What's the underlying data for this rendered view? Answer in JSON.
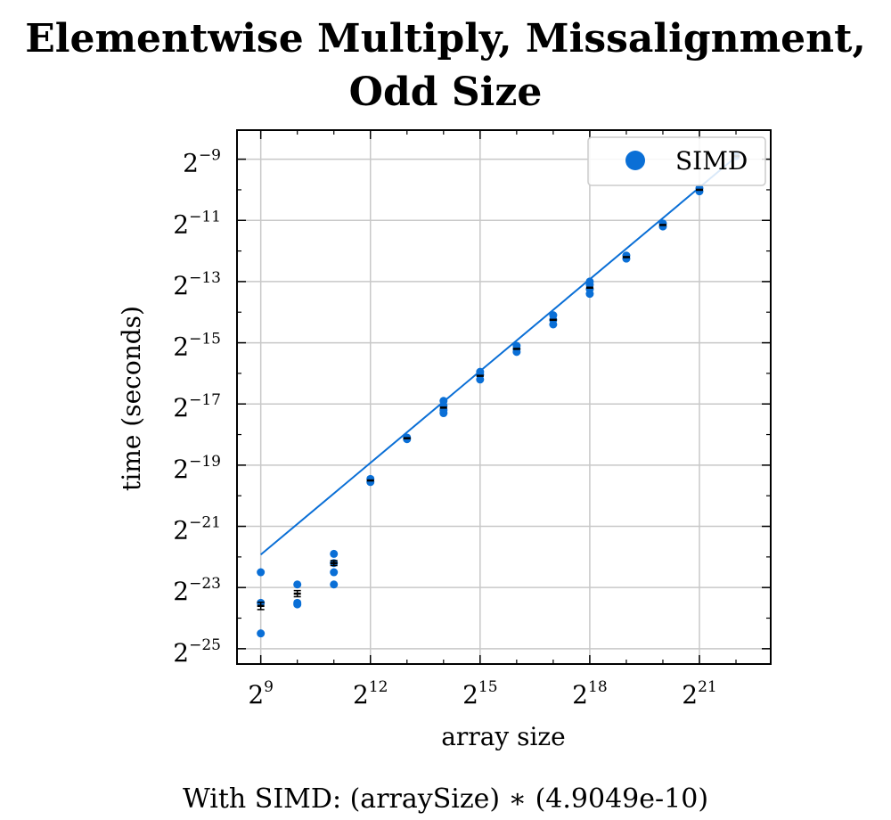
{
  "chart_data": {
    "type": "scatter",
    "title_lines": [
      "Elementwise Multiply, Missalignment,",
      "Odd Size"
    ],
    "xlabel": "array size",
    "ylabel": "time (seconds)",
    "x_scale": "log2",
    "y_scale": "log2",
    "x_range_exp": [
      8.35,
      22.95
    ],
    "y_range_exp": [
      -25.5,
      -8.05
    ],
    "x_ticks": [
      {
        "base": "2",
        "exp": "9",
        "value_exp": 9
      },
      {
        "base": "2",
        "exp": "12",
        "value_exp": 12
      },
      {
        "base": "2",
        "exp": "15",
        "value_exp": 15
      },
      {
        "base": "2",
        "exp": "18",
        "value_exp": 18
      },
      {
        "base": "2",
        "exp": "21",
        "value_exp": 21
      }
    ],
    "y_ticks": [
      {
        "base": "2",
        "exp": "−9",
        "value_exp": -9
      },
      {
        "base": "2",
        "exp": "−11",
        "value_exp": -11
      },
      {
        "base": "2",
        "exp": "−13",
        "value_exp": -13
      },
      {
        "base": "2",
        "exp": "−15",
        "value_exp": -15
      },
      {
        "base": "2",
        "exp": "−17",
        "value_exp": -17
      },
      {
        "base": "2",
        "exp": "−19",
        "value_exp": -19
      },
      {
        "base": "2",
        "exp": "−21",
        "value_exp": -21
      },
      {
        "base": "2",
        "exp": "−23",
        "value_exp": -23
      },
      {
        "base": "2",
        "exp": "−25",
        "value_exp": -25
      }
    ],
    "grid": true,
    "legend_position": "top-right",
    "series": [
      {
        "name": "SIMD",
        "color": "#0a6fd6",
        "points": [
          {
            "x_exp": 9,
            "y_exp": [
              -22.5,
              -23.5,
              -24.5
            ]
          },
          {
            "x_exp": 10,
            "y_exp": [
              -22.9,
              -23.5,
              -23.55
            ]
          },
          {
            "x_exp": 11,
            "y_exp": [
              -21.9,
              -22.2,
              -22.5,
              -22.9
            ]
          },
          {
            "x_exp": 12,
            "y_exp": [
              -19.45,
              -19.55
            ]
          },
          {
            "x_exp": 13,
            "y_exp": [
              -18.1,
              -18.15
            ]
          },
          {
            "x_exp": 14,
            "y_exp": [
              -16.9,
              -17.05,
              -17.2,
              -17.3
            ]
          },
          {
            "x_exp": 15,
            "y_exp": [
              -15.95,
              -16.05,
              -16.2
            ]
          },
          {
            "x_exp": 16,
            "y_exp": [
              -15.1,
              -15.2,
              -15.3
            ]
          },
          {
            "x_exp": 17,
            "y_exp": [
              -14.1,
              -14.25,
              -14.4
            ]
          },
          {
            "x_exp": 18,
            "y_exp": [
              -13.0,
              -13.1,
              -13.25,
              -13.4
            ]
          },
          {
            "x_exp": 19,
            "y_exp": [
              -12.15,
              -12.25
            ]
          },
          {
            "x_exp": 20,
            "y_exp": [
              -11.1,
              -11.2
            ]
          },
          {
            "x_exp": 21,
            "y_exp": [
              -9.95,
              -10.05
            ]
          },
          {
            "x_exp": 22,
            "y_exp": [
              -8.9
            ]
          }
        ],
        "means": [
          {
            "x_exp": 9,
            "y_exp": -23.6,
            "err": 0.12
          },
          {
            "x_exp": 10,
            "y_exp": -23.2,
            "err": 0.1
          },
          {
            "x_exp": 11,
            "y_exp": -22.2,
            "err": 0.08
          },
          {
            "x_exp": 12,
            "y_exp": -19.5,
            "err": 0.0
          },
          {
            "x_exp": 13,
            "y_exp": -18.12,
            "err": 0.0
          },
          {
            "x_exp": 14,
            "y_exp": -17.12,
            "err": 0.0
          },
          {
            "x_exp": 15,
            "y_exp": -16.08,
            "err": 0.0
          },
          {
            "x_exp": 16,
            "y_exp": -15.2,
            "err": 0.0
          },
          {
            "x_exp": 17,
            "y_exp": -14.25,
            "err": 0.0
          },
          {
            "x_exp": 18,
            "y_exp": -13.2,
            "err": 0.0
          },
          {
            "x_exp": 19,
            "y_exp": -12.2,
            "err": 0.0
          },
          {
            "x_exp": 20,
            "y_exp": -11.15,
            "err": 0.0
          },
          {
            "x_exp": 21,
            "y_exp": -10.0,
            "err": 0.0
          },
          {
            "x_exp": 22,
            "y_exp": -8.9,
            "err": 0.0
          }
        ],
        "fit": {
          "coefficient": 4.9049e-10,
          "model": "arraySize"
        }
      }
    ],
    "caption": "With SIMD:  (arraySize) ∗ (4.9049e-10)"
  }
}
